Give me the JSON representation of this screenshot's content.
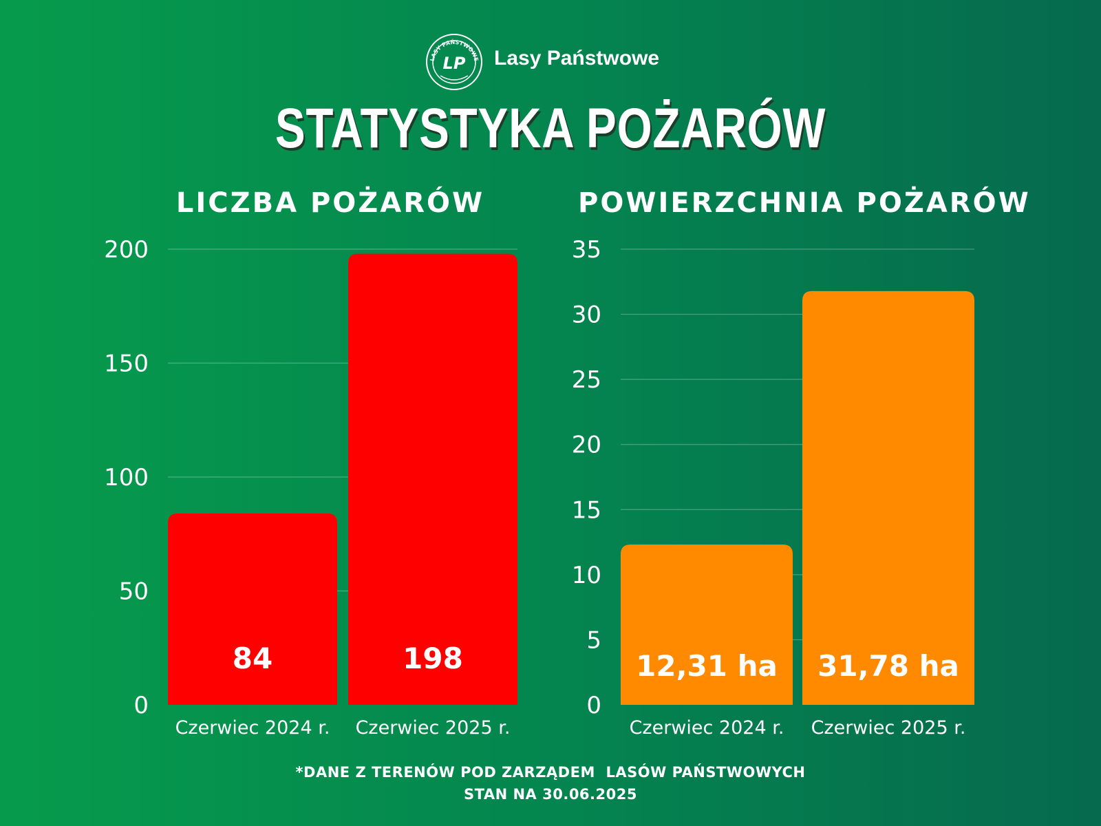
{
  "header": {
    "brand": "Lasy Państwowe",
    "logo_ring_text": "LASY PAŃSTWOWE",
    "logo_mark": "LP",
    "logo_icon": "lasy-panstwowe-logo"
  },
  "title": "STATYSTYKA POŻARÓW",
  "footnote": {
    "line1": "*DANE Z TERENÓW POD ZARZĄDEM  LASÓW PAŃSTWOWYCH",
    "line2": "STAN NA 30.06.2025"
  },
  "colors": {
    "background_left": "#069b4c",
    "background_right": "#066a4e",
    "bar_left_chart": "#ff0000",
    "bar_right_chart": "#ff8a00"
  },
  "chart_data": [
    {
      "type": "bar",
      "title": "LICZBA POŻARÓW",
      "categories": [
        "Czerwiec 2024 r.",
        "Czerwiec 2025 r."
      ],
      "values": [
        84,
        198
      ],
      "data_labels": [
        "84",
        "198"
      ],
      "ylim": [
        0,
        200
      ],
      "yticks": [
        0,
        50,
        100,
        150,
        200
      ],
      "grid": true,
      "color": "#ff0000"
    },
    {
      "type": "bar",
      "title": "POWIERZCHNIA POŻARÓW",
      "categories": [
        "Czerwiec 2024 r.",
        "Czerwiec 2025 r."
      ],
      "values": [
        12.31,
        31.78
      ],
      "data_labels": [
        "12,31 ha",
        "31,78 ha"
      ],
      "ylim": [
        0,
        35
      ],
      "yticks": [
        0,
        5,
        10,
        15,
        20,
        25,
        30,
        35
      ],
      "grid": true,
      "color": "#ff8a00"
    }
  ]
}
